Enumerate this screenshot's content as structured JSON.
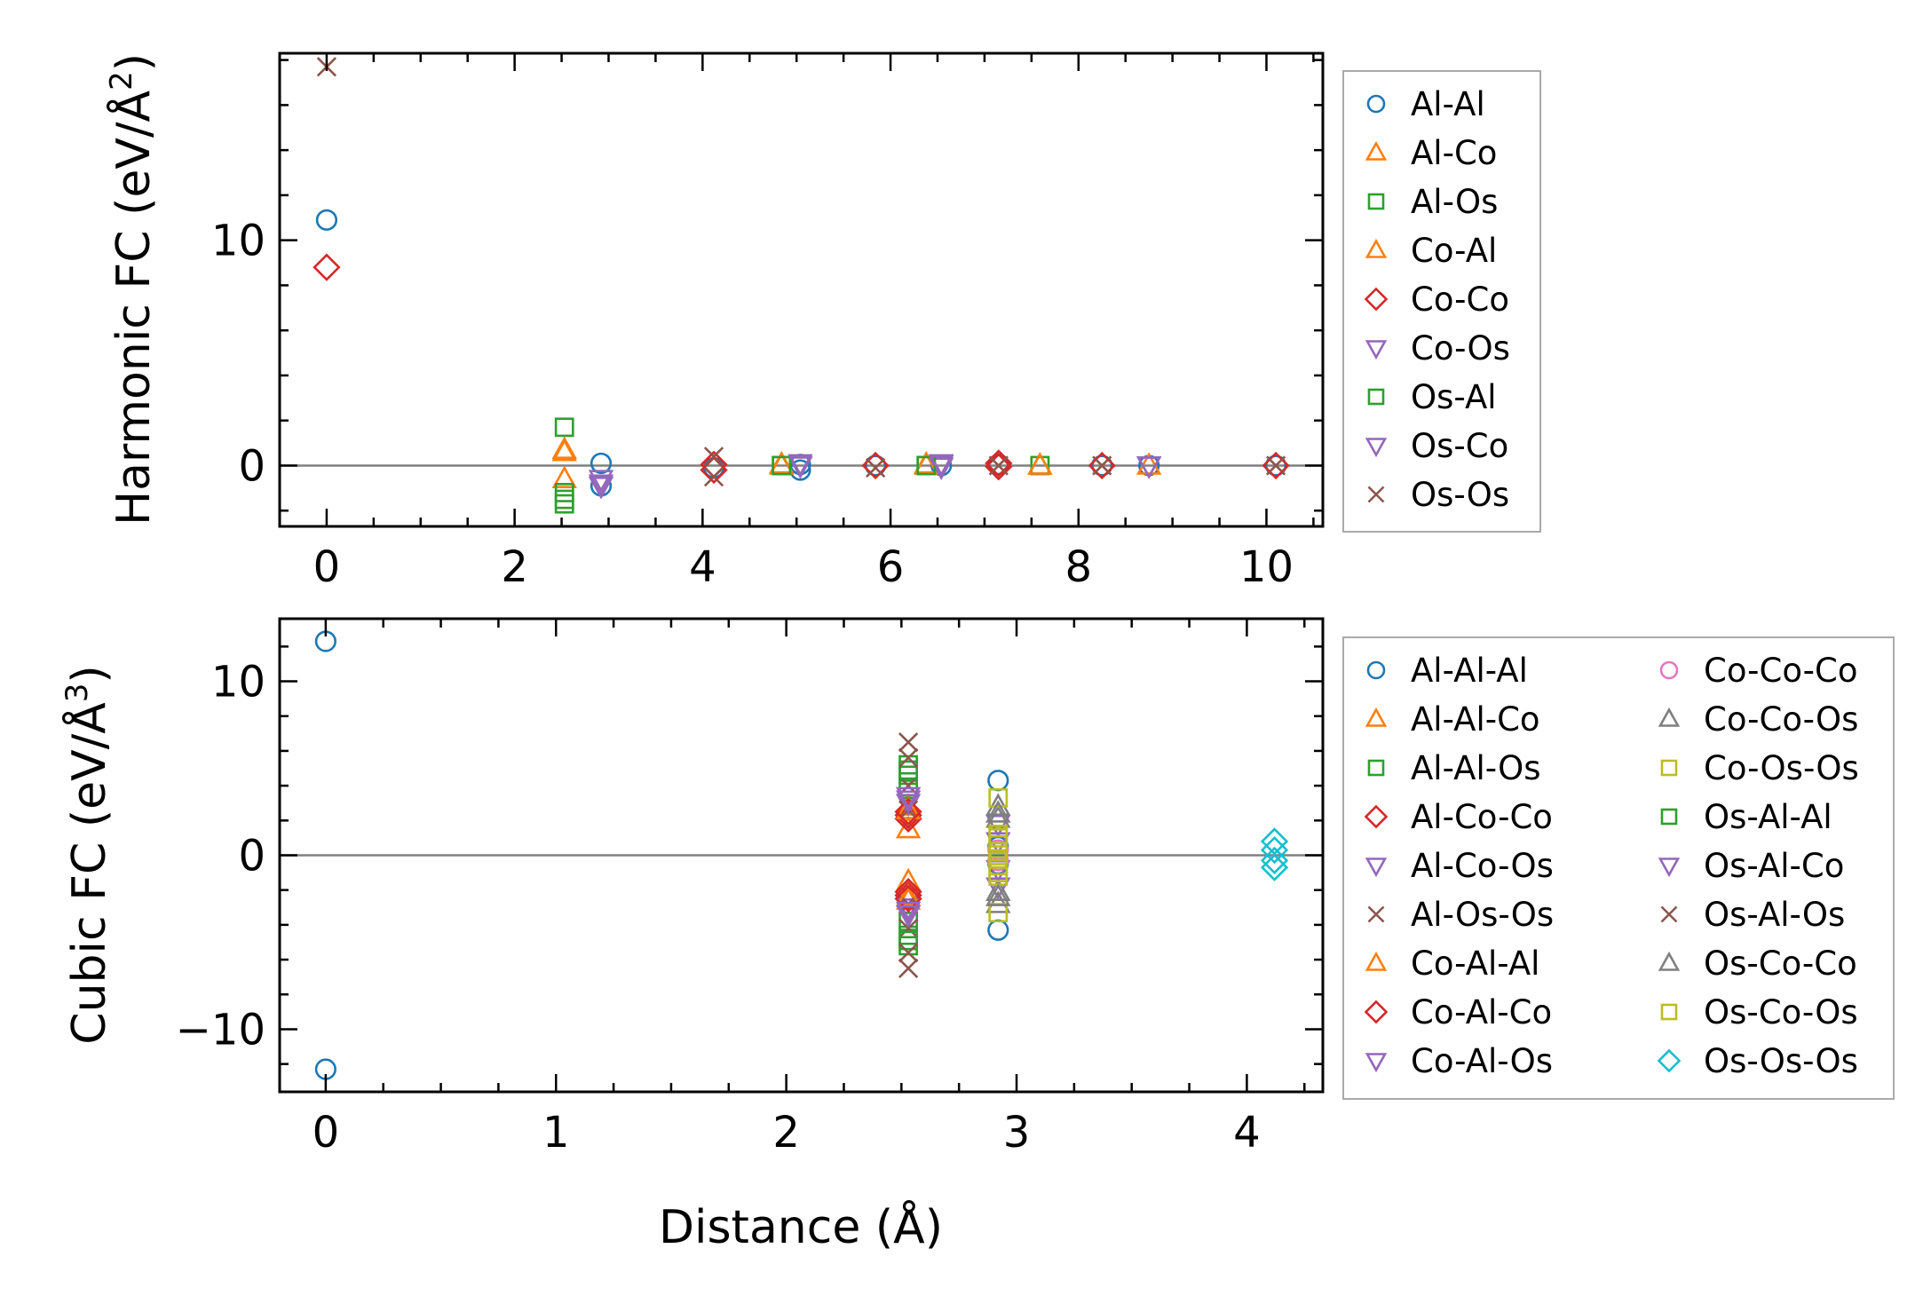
{
  "chart_data": [
    {
      "type": "scatter",
      "title": "",
      "xlabel": "",
      "ylabel": "Harmonic FC (eV/Å²)",
      "ylabel_parts": [
        "Harmonic FC (eV/Å",
        "2",
        ")"
      ],
      "xlim": [
        -0.5,
        10.6
      ],
      "ylim": [
        -2.7,
        18.3
      ],
      "xticks": [
        0,
        2,
        4,
        6,
        8,
        10
      ],
      "yticks": [
        0,
        10
      ],
      "xtick_labels": [
        "0",
        "2",
        "4",
        "6",
        "8",
        "10"
      ],
      "ytick_labels": [
        "0",
        "10"
      ],
      "zero_line": 0,
      "grid": false,
      "legend_position": "outside-right",
      "legend_columns": 1,
      "series": [
        {
          "name": "Al-Al",
          "marker": "circle",
          "color": "#1f77b4",
          "points": [
            [
              0,
              10.9
            ],
            [
              2.92,
              0.1
            ],
            [
              2.92,
              -0.9
            ],
            [
              4.12,
              -0.1
            ],
            [
              5.04,
              0.05
            ],
            [
              5.04,
              -0.2
            ],
            [
              5.84,
              0.0
            ],
            [
              6.54,
              0.0
            ],
            [
              7.15,
              0.05
            ],
            [
              8.25,
              0.0
            ],
            [
              8.75,
              0.0
            ],
            [
              10.1,
              0.0
            ]
          ]
        },
        {
          "name": "Al-Co",
          "marker": "triangle-up",
          "color": "#ff7f0e",
          "points": [
            [
              2.53,
              0.7
            ],
            [
              2.53,
              -0.6
            ],
            [
              4.84,
              0.05
            ],
            [
              6.38,
              0.0
            ],
            [
              7.59,
              0.0
            ],
            [
              8.75,
              0.0
            ]
          ]
        },
        {
          "name": "Al-Os",
          "marker": "square",
          "color": "#2ca02c",
          "points": [
            [
              2.53,
              1.7
            ],
            [
              2.53,
              -1.2
            ],
            [
              2.53,
              -1.7
            ],
            [
              4.84,
              0.0
            ],
            [
              6.38,
              0.0
            ],
            [
              7.59,
              0.0
            ]
          ]
        },
        {
          "name": "Co-Al",
          "marker": "triangle-up",
          "color": "#ff7f0e",
          "points": [
            [
              2.53,
              0.6
            ],
            [
              4.84,
              0.0
            ],
            [
              6.38,
              0.05
            ],
            [
              7.59,
              0.0
            ]
          ]
        },
        {
          "name": "Co-Co",
          "marker": "diamond",
          "color": "#d62728",
          "points": [
            [
              0,
              8.8
            ],
            [
              4.12,
              0.05
            ],
            [
              4.12,
              -0.2
            ],
            [
              5.84,
              0.0
            ],
            [
              7.15,
              0.1
            ],
            [
              7.15,
              -0.05
            ],
            [
              8.25,
              0.0
            ],
            [
              10.1,
              0.0
            ]
          ]
        },
        {
          "name": "Co-Os",
          "marker": "triangle-down",
          "color": "#9467bd",
          "points": [
            [
              2.92,
              -0.6
            ],
            [
              2.92,
              -0.9
            ],
            [
              5.04,
              0.0
            ],
            [
              6.54,
              0.1
            ],
            [
              6.54,
              -0.05
            ],
            [
              8.75,
              0.0
            ]
          ]
        },
        {
          "name": "Os-Al",
          "marker": "square",
          "color": "#2ca02c",
          "points": [
            [
              2.53,
              -1.5
            ],
            [
              4.84,
              0.0
            ],
            [
              6.38,
              0.0
            ]
          ]
        },
        {
          "name": "Os-Co",
          "marker": "triangle-down",
          "color": "#9467bd",
          "points": [
            [
              2.92,
              -0.8
            ],
            [
              5.04,
              0.1
            ],
            [
              6.54,
              0.05
            ],
            [
              8.75,
              0.0
            ]
          ]
        },
        {
          "name": "Os-Os",
          "marker": "x",
          "color": "#8c564b",
          "points": [
            [
              0,
              17.7
            ],
            [
              4.12,
              0.4
            ],
            [
              4.12,
              -0.5
            ],
            [
              5.84,
              -0.1
            ],
            [
              7.15,
              0.0
            ],
            [
              8.25,
              0.0
            ],
            [
              10.1,
              0.0
            ]
          ]
        }
      ]
    },
    {
      "type": "scatter",
      "title": "",
      "xlabel": "Distance (Å)",
      "ylabel": "Cubic FC (eV/Å³)",
      "ylabel_parts": [
        "Cubic FC (eV/Å",
        "3",
        ")"
      ],
      "xlim": [
        -0.2,
        4.33
      ],
      "ylim": [
        -13.6,
        13.6
      ],
      "xticks": [
        0,
        1,
        2,
        3,
        4
      ],
      "yticks": [
        -10,
        0,
        10
      ],
      "xtick_labels": [
        "0",
        "1",
        "2",
        "3",
        "4"
      ],
      "ytick_labels": [
        "−10",
        "0",
        "10"
      ],
      "zero_line": 0,
      "grid": false,
      "legend_position": "outside-right",
      "legend_columns": 2,
      "series": [
        {
          "name": "Al-Al-Al",
          "marker": "circle",
          "color": "#1f77b4",
          "points": [
            [
              0,
              12.3
            ],
            [
              0,
              -12.3
            ],
            [
              2.92,
              4.3
            ],
            [
              2.92,
              -4.3
            ],
            [
              2.92,
              0.5
            ],
            [
              2.92,
              -0.5
            ]
          ]
        },
        {
          "name": "Al-Al-Co",
          "marker": "triangle-up",
          "color": "#ff7f0e",
          "points": [
            [
              2.53,
              2.8
            ],
            [
              2.53,
              1.5
            ],
            [
              2.53,
              -1.5
            ],
            [
              2.53,
              -2.6
            ]
          ]
        },
        {
          "name": "Al-Al-Os",
          "marker": "square",
          "color": "#2ca02c",
          "points": [
            [
              2.53,
              5.2
            ],
            [
              2.53,
              4.6
            ],
            [
              2.53,
              3.8
            ],
            [
              2.53,
              -3.8
            ],
            [
              2.53,
              -4.6
            ],
            [
              2.53,
              -5.2
            ]
          ]
        },
        {
          "name": "Al-Co-Co",
          "marker": "diamond",
          "color": "#d62728",
          "points": [
            [
              2.53,
              2.3
            ],
            [
              2.53,
              2.1
            ],
            [
              2.53,
              -2.1
            ],
            [
              2.53,
              -2.3
            ]
          ]
        },
        {
          "name": "Al-Co-Os",
          "marker": "triangle-down",
          "color": "#9467bd",
          "points": [
            [
              2.53,
              3.0
            ],
            [
              2.53,
              -3.0
            ],
            [
              2.92,
              0.8
            ],
            [
              2.92,
              -0.8
            ]
          ]
        },
        {
          "name": "Al-Os-Os",
          "marker": "x",
          "color": "#8c564b",
          "points": [
            [
              2.53,
              6.5
            ],
            [
              2.53,
              4.0
            ],
            [
              2.53,
              2.6
            ],
            [
              2.53,
              -2.8
            ],
            [
              2.53,
              -4.2
            ],
            [
              2.53,
              -6.5
            ]
          ]
        },
        {
          "name": "Co-Al-Al",
          "marker": "triangle-up",
          "color": "#ff7f0e",
          "points": [
            [
              2.53,
              2.6
            ],
            [
              2.53,
              -2.4
            ]
          ]
        },
        {
          "name": "Co-Al-Co",
          "marker": "diamond",
          "color": "#d62728",
          "points": [
            [
              2.53,
              2.5
            ],
            [
              2.53,
              -2.5
            ]
          ]
        },
        {
          "name": "Co-Al-Os",
          "marker": "triangle-down",
          "color": "#9467bd",
          "points": [
            [
              2.53,
              3.4
            ],
            [
              2.53,
              -3.4
            ],
            [
              2.92,
              1.8
            ],
            [
              2.92,
              -1.8
            ]
          ]
        },
        {
          "name": "Co-Co-Co",
          "marker": "circle",
          "color": "#e377c2",
          "points": [
            [
              2.92,
              0.3
            ],
            [
              2.92,
              -0.3
            ]
          ]
        },
        {
          "name": "Co-Co-Os",
          "marker": "triangle-up",
          "color": "#7f7f7f",
          "points": [
            [
              2.92,
              2.8
            ],
            [
              2.92,
              2.1
            ],
            [
              2.92,
              -2.1
            ],
            [
              2.92,
              -2.8
            ]
          ]
        },
        {
          "name": "Co-Os-Os",
          "marker": "square",
          "color": "#bcbd22",
          "points": [
            [
              2.92,
              3.3
            ],
            [
              2.92,
              1.2
            ],
            [
              2.92,
              0.6
            ],
            [
              2.92,
              -0.6
            ],
            [
              2.92,
              -1.2
            ],
            [
              2.92,
              -3.3
            ]
          ]
        },
        {
          "name": "Os-Al-Al",
          "marker": "square",
          "color": "#2ca02c",
          "points": [
            [
              2.53,
              4.9
            ],
            [
              2.53,
              -4.9
            ]
          ]
        },
        {
          "name": "Os-Al-Co",
          "marker": "triangle-down",
          "color": "#9467bd",
          "points": [
            [
              2.53,
              3.2
            ],
            [
              2.53,
              -3.2
            ]
          ]
        },
        {
          "name": "Os-Al-Os",
          "marker": "x",
          "color": "#8c564b",
          "points": [
            [
              2.53,
              5.6
            ],
            [
              2.53,
              -5.6
            ]
          ]
        },
        {
          "name": "Os-Co-Co",
          "marker": "triangle-up",
          "color": "#7f7f7f",
          "points": [
            [
              2.92,
              2.4
            ],
            [
              2.92,
              -2.4
            ]
          ]
        },
        {
          "name": "Os-Co-Os",
          "marker": "square",
          "color": "#bcbd22",
          "points": [
            [
              2.92,
              0.2
            ],
            [
              2.92,
              -0.2
            ],
            [
              2.92,
              -1.0
            ],
            [
              2.92,
              1.0
            ]
          ]
        },
        {
          "name": "Os-Os-Os",
          "marker": "diamond",
          "color": "#17becf",
          "points": [
            [
              4.12,
              0.8
            ],
            [
              4.12,
              0.3
            ],
            [
              4.12,
              -0.3
            ],
            [
              4.12,
              -0.7
            ]
          ]
        }
      ]
    }
  ]
}
